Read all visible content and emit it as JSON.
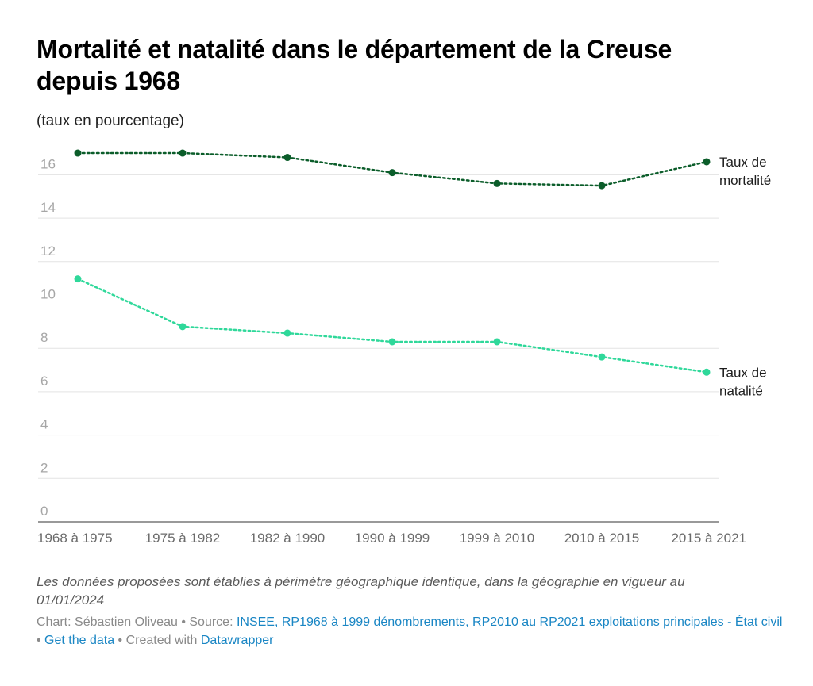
{
  "header": {
    "title": "Mortalité et natalité dans le département de la Creuse depuis 1968",
    "subtitle": "(taux en pourcentage)"
  },
  "chart_data": {
    "type": "line",
    "title": "Mortalité et natalité dans le département de la Creuse depuis 1968",
    "subtitle": "(taux en pourcentage)",
    "xlabel": "",
    "ylabel": "",
    "ylim": [
      0,
      17
    ],
    "y_ticks": [
      0,
      2,
      4,
      6,
      8,
      10,
      12,
      14,
      16
    ],
    "grid": true,
    "categories": [
      "1968 à 1975",
      "1975 à 1982",
      "1982 à 1990",
      "1990 à 1999",
      "1999 à 2010",
      "2010 à 2015",
      "2015 à 2021"
    ],
    "series": [
      {
        "name": "Taux de mortalité",
        "label_lines": [
          "Taux de",
          "mortalité"
        ],
        "color": "#0b5d2a",
        "values": [
          17.0,
          17.0,
          16.8,
          16.1,
          15.6,
          15.5,
          16.6
        ]
      },
      {
        "name": "Taux de natalité",
        "label_lines": [
          "Taux de",
          "natalité"
        ],
        "color": "#2fd89a",
        "values": [
          11.2,
          9.0,
          8.7,
          8.3,
          8.3,
          7.6,
          6.9
        ]
      }
    ]
  },
  "footer": {
    "note": "Les données proposées sont établies à périmètre géographique identique, dans la géographie en vigueur au 01/01/2024",
    "chart_prefix": "Chart: Sébastien Oliveau • Source: ",
    "source_link": "INSEE, RP1968 à 1999 dénombrements, RP2010 au RP2021 exploitations principales - État civil",
    "sep1": " • ",
    "get_data": "Get the data",
    "sep2": " • Created with ",
    "datawrapper": "Datawrapper"
  }
}
